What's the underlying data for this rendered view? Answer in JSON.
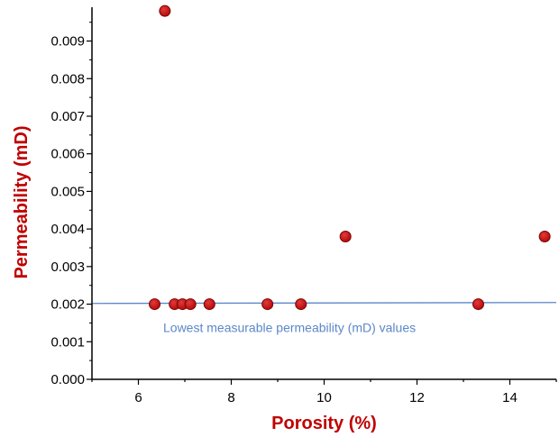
{
  "chart_data": {
    "type": "scatter",
    "xlabel": "Porosity (%)",
    "ylabel": "Permeability (mD)",
    "xlim": [
      5,
      15
    ],
    "ylim": [
      0,
      0.0099
    ],
    "xticks": [
      6,
      8,
      10,
      12,
      14
    ],
    "xtick_labels": [
      "6",
      "8",
      "10",
      "12",
      "14"
    ],
    "yticks": [
      0,
      0.001,
      0.002,
      0.003,
      0.004,
      0.005,
      0.006,
      0.007,
      0.008,
      0.009
    ],
    "ytick_labels": [
      "0.000",
      "0.001",
      "0.002",
      "0.003",
      "0.004",
      "0.005",
      "0.006",
      "0.007",
      "0.008",
      "0.009"
    ],
    "grid": false,
    "series": [
      {
        "color": "#b50a0a",
        "points": [
          {
            "x": 6.35,
            "y": 0.002
          },
          {
            "x": 6.57,
            "y": 0.0098
          },
          {
            "x": 6.78,
            "y": 0.002
          },
          {
            "x": 6.95,
            "y": 0.002
          },
          {
            "x": 7.12,
            "y": 0.002
          },
          {
            "x": 7.53,
            "y": 0.002
          },
          {
            "x": 8.78,
            "y": 0.002
          },
          {
            "x": 9.5,
            "y": 0.002
          },
          {
            "x": 10.46,
            "y": 0.0038
          },
          {
            "x": 13.32,
            "y": 0.002
          },
          {
            "x": 14.75,
            "y": 0.0038
          }
        ]
      }
    ],
    "reference_line": {
      "y": 0.00202,
      "color": "#5b87c9",
      "label": "Lowest measurable permeability (mD) values"
    },
    "title_color": "#c00000"
  }
}
